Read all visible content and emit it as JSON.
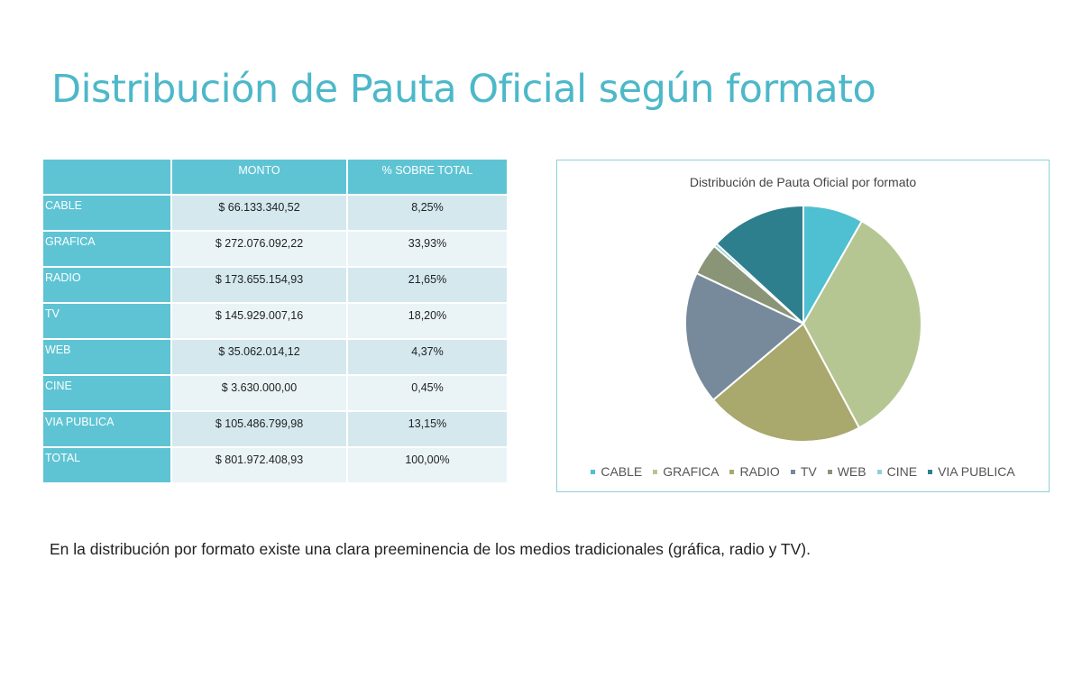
{
  "title": "Distribución de Pauta Oficial según formato",
  "table": {
    "headers": [
      "",
      "MONTO",
      "% SOBRE TOTAL"
    ],
    "rows": [
      {
        "label": "CABLE",
        "monto": "$ 66.133.340,52",
        "pct": "8,25%"
      },
      {
        "label": "GRAFICA",
        "monto": "$ 272.076.092,22",
        "pct": "33,93%"
      },
      {
        "label": "RADIO",
        "monto": "$ 173.655.154,93",
        "pct": "21,65%"
      },
      {
        "label": "TV",
        "monto": "$ 145.929.007,16",
        "pct": "18,20%"
      },
      {
        "label": "WEB",
        "monto": "$ 35.062.014,12",
        "pct": "4,37%"
      },
      {
        "label": "CINE",
        "monto": "$ 3.630.000,00",
        "pct": "0,45%"
      },
      {
        "label": "VIA PUBLICA",
        "monto": "$ 105.486.799,98",
        "pct": "13,15%"
      },
      {
        "label": "TOTAL",
        "monto": "$ 801.972.408,93",
        "pct": "100,00%"
      }
    ]
  },
  "chart_data": {
    "type": "pie",
    "title": "Distribución de Pauta Oficial por formato",
    "categories": [
      "CABLE",
      "GRAFICA",
      "RADIO",
      "TV",
      "WEB",
      "CINE",
      "VIA PUBLICA"
    ],
    "values": [
      66133340.52,
      272076092.22,
      173655154.93,
      145929007.16,
      35062014.12,
      3630000.0,
      105486799.98
    ],
    "colors": [
      "#4fbfd2",
      "#b5c693",
      "#a9a86d",
      "#778a9c",
      "#8a9577",
      "#93cfd5",
      "#2e7f8d"
    ],
    "legend": "bottom"
  },
  "caption": "En la distribución por formato existe una clara preeminencia de los medios tradicionales (gráfica, radio y TV)."
}
